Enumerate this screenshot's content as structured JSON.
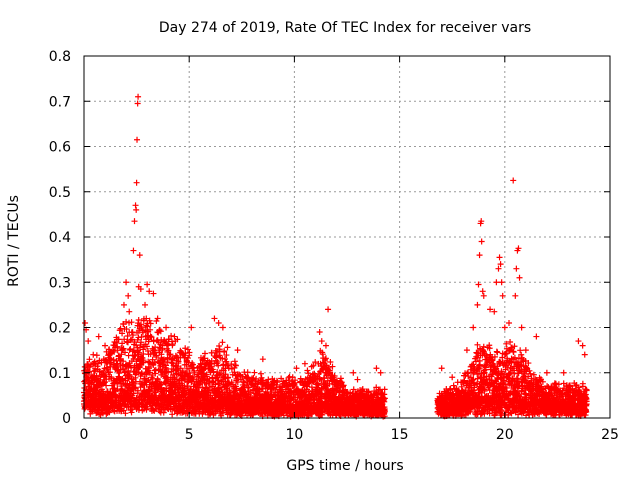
{
  "chart_data": {
    "type": "scatter",
    "title": "Day 274 of 2019, Rate Of TEC Index for receiver vars",
    "xlabel": "GPS time / hours",
    "ylabel": "ROTI / TECUs",
    "xlim": [
      0,
      25
    ],
    "ylim": [
      0,
      0.8
    ],
    "xticks": [
      0,
      5,
      10,
      15,
      20,
      25
    ],
    "yticks": [
      0,
      0.1,
      0.2,
      0.3,
      0.4,
      0.5,
      0.6,
      0.7,
      0.8
    ],
    "xtick_labels": [
      "0",
      "5",
      "10",
      "15",
      "20",
      "25"
    ],
    "ytick_labels": [
      "0",
      "0.1",
      "0.2",
      "0.3",
      "0.4",
      "0.5",
      "0.6",
      "0.7",
      "0.8"
    ],
    "grid": true,
    "marker": "+",
    "marker_color": "#ff0000",
    "data_segments": [
      {
        "start": 0.0,
        "end": 14.3
      },
      {
        "start": 16.8,
        "end": 23.9
      }
    ],
    "envelope": [
      {
        "x": 0.0,
        "base": 0.03,
        "top": 0.12
      },
      {
        "x": 1.0,
        "base": 0.04,
        "top": 0.14
      },
      {
        "x": 2.0,
        "base": 0.05,
        "top": 0.2
      },
      {
        "x": 2.8,
        "base": 0.06,
        "top": 0.22
      },
      {
        "x": 3.5,
        "base": 0.05,
        "top": 0.2
      },
      {
        "x": 4.5,
        "base": 0.04,
        "top": 0.16
      },
      {
        "x": 5.5,
        "base": 0.035,
        "top": 0.12
      },
      {
        "x": 6.5,
        "base": 0.03,
        "top": 0.17
      },
      {
        "x": 7.5,
        "base": 0.025,
        "top": 0.1
      },
      {
        "x": 9.0,
        "base": 0.02,
        "top": 0.08
      },
      {
        "x": 10.5,
        "base": 0.02,
        "top": 0.09
      },
      {
        "x": 11.3,
        "base": 0.025,
        "top": 0.15
      },
      {
        "x": 12.5,
        "base": 0.02,
        "top": 0.06
      },
      {
        "x": 14.3,
        "base": 0.015,
        "top": 0.06
      },
      {
        "x": 16.8,
        "base": 0.02,
        "top": 0.05
      },
      {
        "x": 18.0,
        "base": 0.025,
        "top": 0.08
      },
      {
        "x": 18.8,
        "base": 0.035,
        "top": 0.17
      },
      {
        "x": 19.5,
        "base": 0.035,
        "top": 0.14
      },
      {
        "x": 20.5,
        "base": 0.035,
        "top": 0.17
      },
      {
        "x": 21.5,
        "base": 0.03,
        "top": 0.08
      },
      {
        "x": 22.5,
        "base": 0.025,
        "top": 0.07
      },
      {
        "x": 23.9,
        "base": 0.02,
        "top": 0.07
      }
    ],
    "outliers": [
      [
        0.05,
        0.21
      ],
      [
        0.1,
        0.195
      ],
      [
        0.2,
        0.17
      ],
      [
        0.7,
        0.18
      ],
      [
        1.0,
        0.16
      ],
      [
        1.9,
        0.25
      ],
      [
        2.0,
        0.3
      ],
      [
        2.1,
        0.27
      ],
      [
        2.15,
        0.235
      ],
      [
        2.35,
        0.37
      ],
      [
        2.4,
        0.435
      ],
      [
        2.45,
        0.47
      ],
      [
        2.48,
        0.46
      ],
      [
        2.5,
        0.52
      ],
      [
        2.52,
        0.615
      ],
      [
        2.55,
        0.695
      ],
      [
        2.57,
        0.71
      ],
      [
        2.6,
        0.29
      ],
      [
        2.65,
        0.36
      ],
      [
        2.7,
        0.285
      ],
      [
        2.9,
        0.25
      ],
      [
        3.0,
        0.295
      ],
      [
        3.1,
        0.28
      ],
      [
        3.3,
        0.275
      ],
      [
        3.5,
        0.22
      ],
      [
        3.9,
        0.2
      ],
      [
        4.3,
        0.18
      ],
      [
        5.1,
        0.2
      ],
      [
        6.2,
        0.22
      ],
      [
        6.4,
        0.21
      ],
      [
        6.6,
        0.2
      ],
      [
        7.3,
        0.15
      ],
      [
        8.5,
        0.13
      ],
      [
        10.1,
        0.11
      ],
      [
        10.5,
        0.12
      ],
      [
        11.2,
        0.19
      ],
      [
        11.3,
        0.17
      ],
      [
        11.5,
        0.16
      ],
      [
        11.6,
        0.24
      ],
      [
        12.8,
        0.1
      ],
      [
        13.0,
        0.085
      ],
      [
        13.9,
        0.11
      ],
      [
        14.1,
        0.1
      ],
      [
        17.0,
        0.11
      ],
      [
        17.5,
        0.09
      ],
      [
        18.2,
        0.15
      ],
      [
        18.5,
        0.2
      ],
      [
        18.7,
        0.25
      ],
      [
        18.75,
        0.295
      ],
      [
        18.8,
        0.36
      ],
      [
        18.85,
        0.43
      ],
      [
        18.88,
        0.435
      ],
      [
        18.9,
        0.39
      ],
      [
        18.95,
        0.28
      ],
      [
        19.0,
        0.27
      ],
      [
        19.3,
        0.24
      ],
      [
        19.5,
        0.235
      ],
      [
        19.6,
        0.3
      ],
      [
        19.7,
        0.33
      ],
      [
        19.75,
        0.355
      ],
      [
        19.8,
        0.34
      ],
      [
        19.85,
        0.3
      ],
      [
        19.9,
        0.27
      ],
      [
        20.0,
        0.2
      ],
      [
        20.2,
        0.21
      ],
      [
        20.4,
        0.525
      ],
      [
        20.5,
        0.27
      ],
      [
        20.55,
        0.33
      ],
      [
        20.6,
        0.37
      ],
      [
        20.65,
        0.375
      ],
      [
        20.7,
        0.31
      ],
      [
        20.8,
        0.2
      ],
      [
        21.0,
        0.15
      ],
      [
        21.5,
        0.18
      ],
      [
        22.0,
        0.1
      ],
      [
        22.8,
        0.1
      ],
      [
        23.5,
        0.17
      ],
      [
        23.7,
        0.16
      ],
      [
        23.8,
        0.14
      ]
    ]
  }
}
